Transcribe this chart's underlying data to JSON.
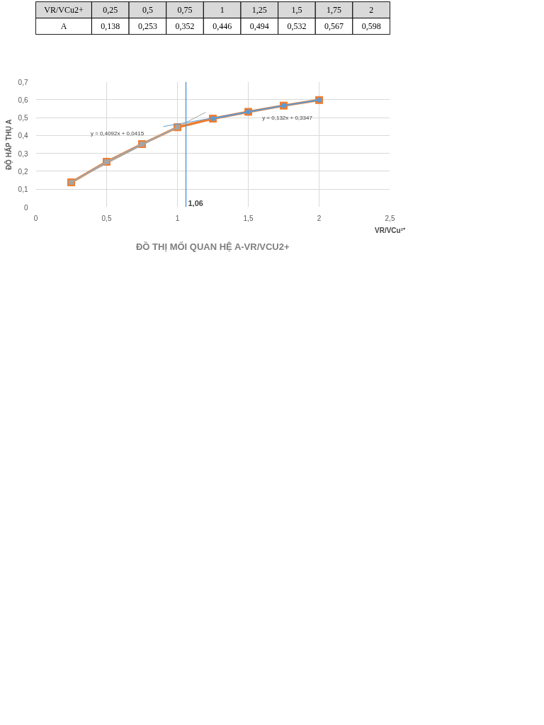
{
  "chart_data": {
    "type": "line",
    "title": "ĐỒ THỊ MỐI QUAN HỆ A-VR/VCU2+",
    "xlabel": "VR/VCu²⁺",
    "ylabel": "ĐỘ HẤP THỤ A",
    "annotations": [
      "VR/VCu2+",
      "0,25",
      "0,5",
      "0,75",
      "1",
      "1,25",
      "1,5",
      "1,75",
      "2",
      "A",
      "0,138",
      "0,253",
      "0,352",
      "0,446",
      "0,494",
      "0,532",
      "0,567",
      "0,598",
      "y = 0,4092x + 0,0415",
      "y = 0,132x + 0,3347"
    ],
    "x": [
      0.25,
      0.5,
      0.75,
      1,
      1.25,
      1.5,
      1.75,
      2
    ],
    "series": [
      {
        "color": "#ed7d31",
        "marker": "square",
        "values": [
          0.138,
          0.253,
          0.352,
          0.446,
          0.494,
          0.532,
          0.567,
          0.598
        ]
      },
      {
        "color": "#a5a5a5",
        "marker": "square",
        "x": [
          0.25,
          0.5,
          0.75,
          1
        ],
        "values": [
          0.138,
          0.253,
          0.352,
          0.446
        ]
      },
      {
        "color": "#5b9bd5",
        "marker": "circle",
        "x": [
          1.25,
          1.5,
          1.75,
          2
        ],
        "values": [
          0.494,
          0.532,
          0.567,
          0.598
        ]
      },
      {
        "color": "#a5a5a5",
        "x": [
          0.25,
          1.2
        ],
        "values": [
          0.14,
          0.53
        ]
      },
      {
        "color": "#5b9bd5",
        "x": [
          0.9,
          2
        ],
        "values": [
          0.45,
          0.6
        ]
      }
    ],
    "ref_lines": [
      {
        "axis": "x",
        "value": 1.06,
        "label": "1,06",
        "color": "#5b9bd5"
      }
    ],
    "xlim": [
      0,
      2.5
    ],
    "ylim": [
      0,
      0.7
    ],
    "xticks": [
      0,
      {
        "value": 0.5,
        "label": "0,5"
      },
      1,
      {
        "value": 1.5,
        "label": "1,5"
      },
      2,
      {
        "value": 2.5,
        "label": "2,5"
      }
    ],
    "yticks": [
      0,
      {
        "value": 0.1,
        "label": "0,1"
      },
      {
        "value": 0.2,
        "label": "0,2"
      },
      {
        "value": 0.3,
        "label": "0,3"
      },
      {
        "value": 0.4,
        "label": "0,4"
      },
      {
        "value": 0.5,
        "label": "0,5"
      },
      {
        "value": 0.6,
        "label": "0,6"
      },
      {
        "value": 0.7,
        "label": "0,7"
      }
    ],
    "grid": true
  }
}
